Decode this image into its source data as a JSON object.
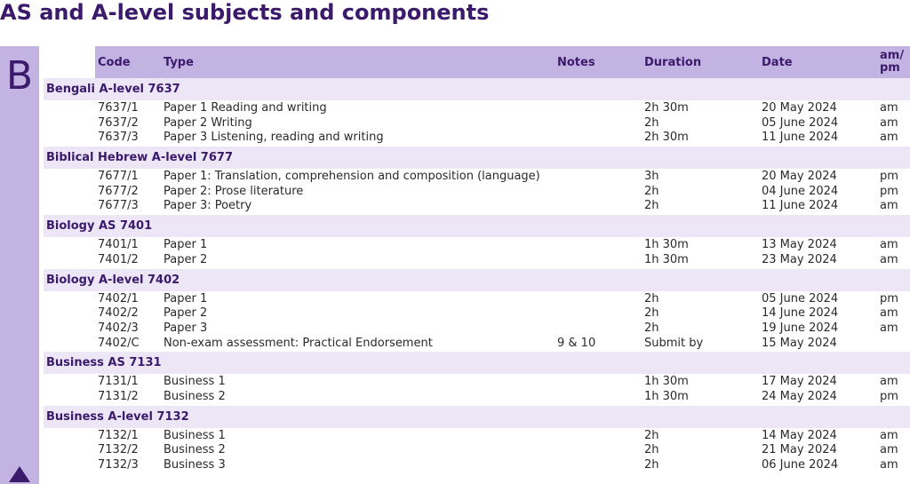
{
  "page": {
    "title": "AS and A-level subjects and components",
    "letter": "B"
  },
  "header": {
    "code": "Code",
    "type": "Type",
    "notes": "Notes",
    "duration": "Duration",
    "date": "Date",
    "ampm": "am/\npm"
  },
  "colors": {
    "accent": "#3b1a6b",
    "sidebar": "#c3b3e2",
    "section_bg": "#ece6f7"
  },
  "sections": [
    {
      "name": "Bengali A-level  7637",
      "rows": [
        {
          "code": "7637/1",
          "type": "Paper 1 Reading and writing",
          "notes": "",
          "duration": "2h 30m",
          "date": "20 May 2024",
          "ampm": "am"
        },
        {
          "code": "7637/2",
          "type": "Paper 2 Writing",
          "notes": "",
          "duration": "2h",
          "date": "05 June 2024",
          "ampm": "am"
        },
        {
          "code": "7637/3",
          "type": "Paper 3 Listening, reading and writing",
          "notes": "",
          "duration": "2h 30m",
          "date": "11 June 2024",
          "ampm": "am"
        }
      ]
    },
    {
      "name": "Biblical Hebrew A-level  7677",
      "rows": [
        {
          "code": "7677/1",
          "type": "Paper 1: Translation, comprehension and composition (language)",
          "notes": "",
          "duration": "3h",
          "date": "20 May 2024",
          "ampm": "pm"
        },
        {
          "code": "7677/2",
          "type": "Paper 2: Prose literature",
          "notes": "",
          "duration": "2h",
          "date": "04 June 2024",
          "ampm": "pm"
        },
        {
          "code": "7677/3",
          "type": "Paper 3: Poetry",
          "notes": "",
          "duration": "2h",
          "date": "11 June 2024",
          "ampm": "am"
        }
      ]
    },
    {
      "name": "Biology AS  7401",
      "rows": [
        {
          "code": "7401/1",
          "type": "Paper 1",
          "notes": "",
          "duration": "1h 30m",
          "date": "13 May 2024",
          "ampm": "am"
        },
        {
          "code": "7401/2",
          "type": "Paper 2",
          "notes": "",
          "duration": "1h 30m",
          "date": "23 May 2024",
          "ampm": "am"
        }
      ]
    },
    {
      "name": "Biology A-level  7402",
      "rows": [
        {
          "code": "7402/1",
          "type": "Paper 1",
          "notes": "",
          "duration": "2h",
          "date": "05 June 2024",
          "ampm": "pm"
        },
        {
          "code": "7402/2",
          "type": "Paper 2",
          "notes": "",
          "duration": "2h",
          "date": "14 June 2024",
          "ampm": "am"
        },
        {
          "code": "7402/3",
          "type": "Paper 3",
          "notes": "",
          "duration": "2h",
          "date": "19 June 2024",
          "ampm": "am"
        },
        {
          "code": "7402/C",
          "type": "Non-exam assessment: Practical Endorsement",
          "notes": "9 & 10",
          "duration": "Submit by",
          "date": "15 May 2024",
          "ampm": ""
        }
      ]
    },
    {
      "name": "Business AS  7131",
      "rows": [
        {
          "code": "7131/1",
          "type": "Business 1",
          "notes": "",
          "duration": "1h 30m",
          "date": "17 May 2024",
          "ampm": "am"
        },
        {
          "code": "7131/2",
          "type": "Business 2",
          "notes": "",
          "duration": "1h 30m",
          "date": "24 May 2024",
          "ampm": "pm"
        }
      ]
    },
    {
      "name": "Business A-level  7132",
      "rows": [
        {
          "code": "7132/1",
          "type": "Business 1",
          "notes": "",
          "duration": "2h",
          "date": "14 May 2024",
          "ampm": "am"
        },
        {
          "code": "7132/2",
          "type": "Business 2",
          "notes": "",
          "duration": "2h",
          "date": "21 May 2024",
          "ampm": "am"
        },
        {
          "code": "7132/3",
          "type": "Business 3",
          "notes": "",
          "duration": "2h",
          "date": "06 June 2024",
          "ampm": "am"
        }
      ]
    }
  ]
}
